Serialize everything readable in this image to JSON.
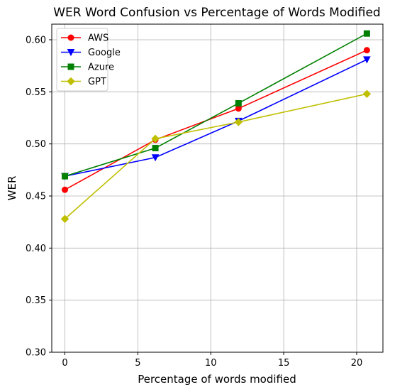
{
  "chart_data": {
    "type": "line",
    "title": "WER Word Confusion vs Percentage of Words Modified",
    "xlabel": "Percentage of words modified",
    "ylabel": "WER",
    "xlim": [
      -0.9,
      21.8
    ],
    "ylim": [
      0.3,
      0.615
    ],
    "xticks": [
      0,
      5,
      10,
      15,
      20
    ],
    "yticks": [
      0.3,
      0.35,
      0.4,
      0.45,
      0.5,
      0.55,
      0.6
    ],
    "xtick_labels": [
      "0",
      "5",
      "10",
      "15",
      "20"
    ],
    "ytick_labels": [
      "0.30",
      "0.35",
      "0.40",
      "0.45",
      "0.50",
      "0.55",
      "0.60"
    ],
    "grid": true,
    "legend_position": "upper-left",
    "x": [
      0,
      6.2,
      11.9,
      20.7
    ],
    "series": [
      {
        "name": "AWS",
        "color": "#ff0000",
        "marker": "circle",
        "values": [
          0.456,
          0.504,
          0.534,
          0.59
        ]
      },
      {
        "name": "Google",
        "color": "#0000ff",
        "marker": "triangle-down",
        "values": [
          0.469,
          0.487,
          0.522,
          0.581
        ]
      },
      {
        "name": "Azure",
        "color": "#008000",
        "marker": "square",
        "values": [
          0.469,
          0.496,
          0.539,
          0.606
        ]
      },
      {
        "name": "GPT",
        "color": "#bfbf00",
        "marker": "diamond",
        "values": [
          0.428,
          0.505,
          0.521,
          0.548
        ]
      }
    ]
  }
}
